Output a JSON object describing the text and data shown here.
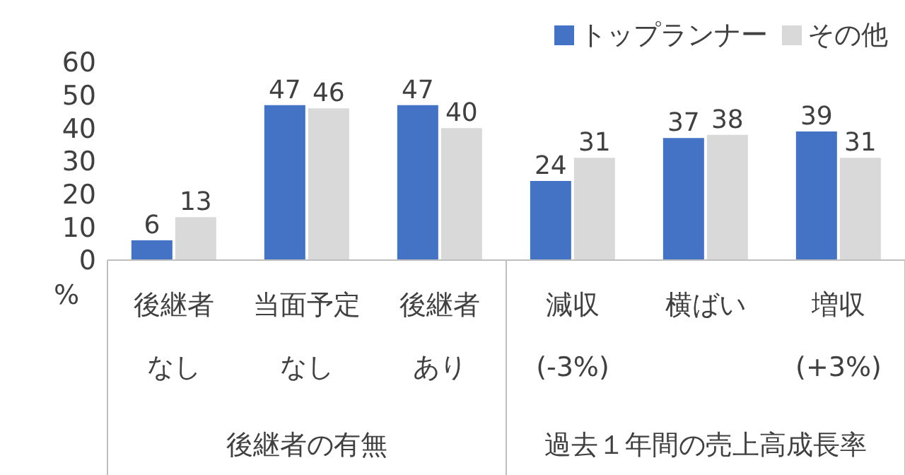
{
  "chart_data": {
    "type": "bar",
    "categories": [
      "後継者なし",
      "当面予定なし",
      "後継者あり",
      "減収\n(-3%)",
      "横ばい",
      "増収\n(+3%)"
    ],
    "series": [
      {
        "name": "トップランナー",
        "color": "#4472c4",
        "values": [
          6,
          47,
          47,
          24,
          37,
          39
        ]
      },
      {
        "name": "その他",
        "color": "#d9d9d9",
        "values": [
          13,
          46,
          40,
          31,
          38,
          31
        ]
      }
    ],
    "ylabel": "%",
    "ylim": [
      0,
      60
    ],
    "yticks": [
      0,
      10,
      20,
      30,
      40,
      50,
      60
    ],
    "annotations": [
      "後継者の有無",
      "過去１年間の売上高成長率"
    ],
    "data_labels": true,
    "legend": "top right",
    "grid": false
  }
}
